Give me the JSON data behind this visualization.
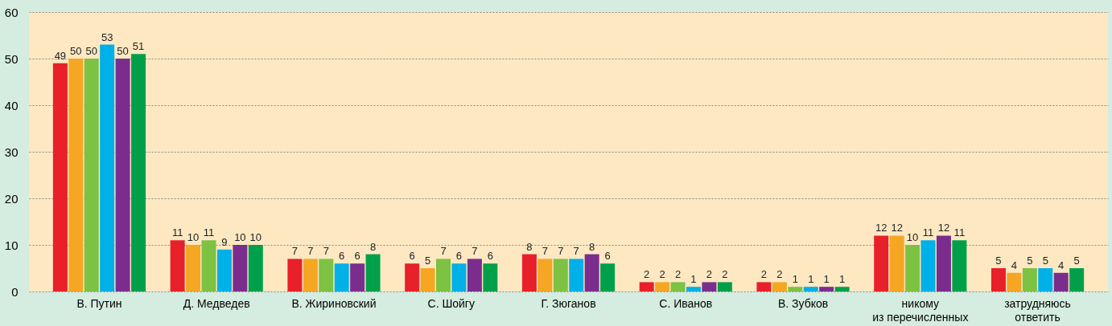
{
  "chart_data": {
    "type": "bar",
    "categories": [
      "В. Путин",
      "Д. Медведев",
      "В. Жириновский",
      "С. Шойгу",
      "Г. Зюганов",
      "С. Иванов",
      "В. Зубков",
      "никому\nиз перечисленных",
      "затрудняюсь\nответить"
    ],
    "series": [
      {
        "color": "#e8202a",
        "values": [
          49,
          11,
          7,
          6,
          8,
          2,
          2,
          12,
          5
        ]
      },
      {
        "color": "#f5a623",
        "values": [
          50,
          10,
          7,
          5,
          7,
          2,
          2,
          12,
          4
        ]
      },
      {
        "color": "#7dc242",
        "values": [
          50,
          11,
          7,
          7,
          7,
          2,
          1,
          10,
          5
        ]
      },
      {
        "color": "#00b0e8",
        "values": [
          53,
          9,
          6,
          6,
          7,
          1,
          1,
          11,
          5
        ]
      },
      {
        "color": "#7b2d8e",
        "values": [
          50,
          10,
          6,
          7,
          8,
          2,
          1,
          12,
          4
        ]
      },
      {
        "color": "#00a04b",
        "values": [
          51,
          10,
          8,
          6,
          6,
          2,
          1,
          11,
          5
        ]
      }
    ],
    "ylim": [
      0,
      60
    ],
    "yticks": [
      0,
      10,
      20,
      30,
      40,
      50,
      60
    ],
    "grid": "y",
    "data_labels": true,
    "legend": false
  }
}
